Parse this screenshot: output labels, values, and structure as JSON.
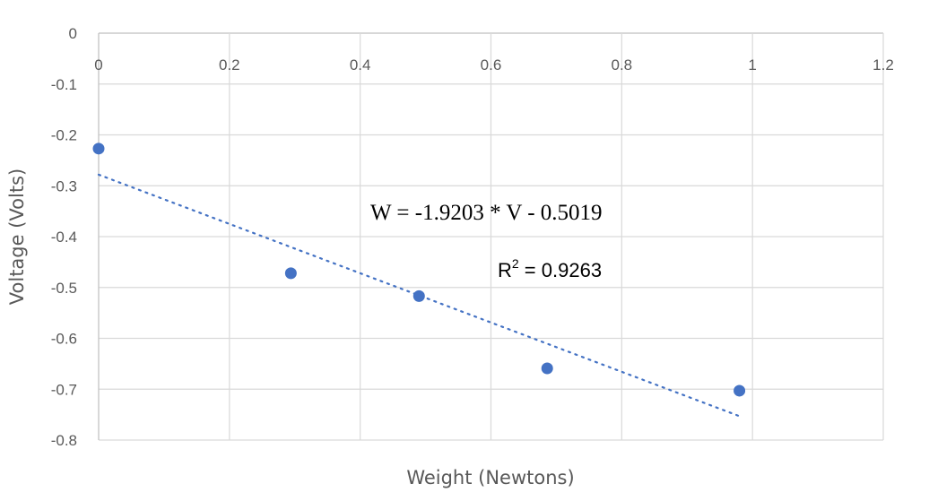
{
  "chart_data": {
    "type": "scatter",
    "title": "",
    "xlabel": "Weight (Newtons)",
    "ylabel": "Voltage (Volts)",
    "xlim": [
      0,
      1.2
    ],
    "ylim": [
      -0.8,
      0
    ],
    "x_ticks": [
      "0",
      "0.2",
      "0.4",
      "0.6",
      "0.8",
      "1",
      "1.2"
    ],
    "y_ticks": [
      "0",
      "-0.1",
      "-0.2",
      "-0.3",
      "-0.4",
      "-0.5",
      "-0.6",
      "-0.7",
      "-0.8"
    ],
    "x_tick_values": [
      0,
      0.2,
      0.4,
      0.6,
      0.8,
      1.0,
      1.2
    ],
    "y_tick_values": [
      0,
      -0.1,
      -0.2,
      -0.3,
      -0.4,
      -0.5,
      -0.6,
      -0.7,
      -0.8
    ],
    "x_axis_position": "top",
    "grid": true,
    "legend": "none",
    "series": [
      {
        "x": [
          0,
          0.294,
          0.49,
          0.686,
          0.98
        ],
        "y": [
          -0.227,
          -0.472,
          -0.517,
          -0.659,
          -0.703
        ],
        "color": "#4472C4",
        "trendline": {
          "type": "linear",
          "style": "dotted"
        }
      }
    ],
    "annotations": {
      "equation": "W = -1.9203 * V - 0.5019",
      "r2_label": "R",
      "r2_sup": "2",
      "r2_value": " = 0.9263"
    }
  }
}
